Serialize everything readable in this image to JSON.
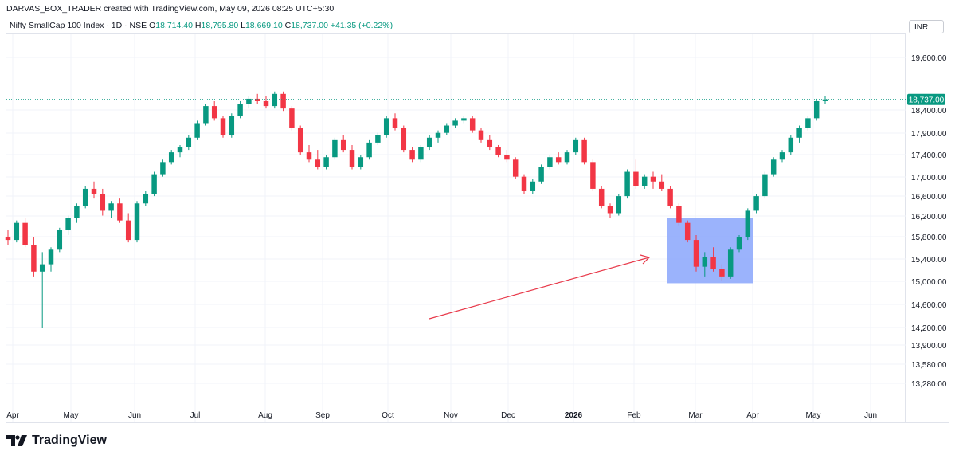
{
  "header": {
    "attribution": "DARVAS_BOX_TRADER created with TradingView.com, May 09, 2026 08:25 UTC+5:30"
  },
  "legend": {
    "symbol": "Nifty SmallCap 100 Index · 1D · NSE",
    "open_label": "O",
    "open": "18,714.40",
    "high_label": "H",
    "high": "18,795.80",
    "low_label": "L",
    "low": "18,669.10",
    "close_label": "C",
    "close": "18,737.00",
    "change": "+41.35 (+0.22%)"
  },
  "currency": "INR",
  "brand": "TradingView",
  "colors": {
    "up": "#089981",
    "down": "#f23645",
    "box": "#8aa6fb",
    "arrow": "#e8394a",
    "price_label_bg": "#089981"
  },
  "chart_data": {
    "type": "candlestick",
    "current_price": "18,737.00",
    "y_ticks": [
      "19,600.00",
      "18,400.00",
      "17,900.00",
      "17,400.00",
      "17,000.00",
      "16,600.00",
      "16,200.00",
      "15,800.00",
      "15,400.00",
      "15,000.00",
      "14,600.00",
      "14,200.00",
      "13,900.00",
      "13,580.00",
      "13,280.00"
    ],
    "x_ticks": [
      "Apr",
      "May",
      "Jun",
      "Jul",
      "Aug",
      "Sep",
      "Oct",
      "Nov",
      "Dec",
      "2026",
      "Feb",
      "Mar",
      "Apr",
      "May",
      "Jun"
    ],
    "annotations": {
      "box": {
        "price_top": 16300,
        "price_bottom": 14960,
        "from": "Mar",
        "to": "Apr"
      },
      "arrow": "pointing up-right toward the box"
    },
    "ohlc_approx": [
      [
        15900,
        16050,
        15750,
        15850
      ],
      [
        15850,
        16250,
        15800,
        16200
      ],
      [
        16200,
        16300,
        15700,
        15750
      ],
      [
        15750,
        15900,
        15100,
        15200
      ],
      [
        15200,
        15600,
        14050,
        15350
      ],
      [
        15350,
        15700,
        15200,
        15650
      ],
      [
        15650,
        16100,
        15600,
        16050
      ],
      [
        16050,
        16350,
        15950,
        16300
      ],
      [
        16300,
        16600,
        16200,
        16550
      ],
      [
        16550,
        16950,
        16500,
        16900
      ],
      [
        16900,
        17050,
        16700,
        16800
      ],
      [
        16800,
        16900,
        16350,
        16450
      ],
      [
        16450,
        16650,
        16300,
        16600
      ],
      [
        16600,
        16700,
        16200,
        16250
      ],
      [
        16250,
        16400,
        15800,
        15850
      ],
      [
        15850,
        16650,
        15800,
        16600
      ],
      [
        16600,
        16850,
        16550,
        16800
      ],
      [
        16800,
        17250,
        16750,
        17200
      ],
      [
        17200,
        17500,
        17150,
        17450
      ],
      [
        17450,
        17700,
        17400,
        17650
      ],
      [
        17650,
        17800,
        17550,
        17750
      ],
      [
        17750,
        18000,
        17700,
        17950
      ],
      [
        17950,
        18300,
        17900,
        18250
      ],
      [
        18250,
        18650,
        18200,
        18600
      ],
      [
        18600,
        18700,
        18300,
        18350
      ],
      [
        18350,
        18400,
        17950,
        18000
      ],
      [
        18000,
        18450,
        17950,
        18400
      ],
      [
        18400,
        18700,
        18350,
        18650
      ],
      [
        18650,
        18800,
        18550,
        18750
      ],
      [
        18750,
        18850,
        18650,
        18700
      ],
      [
        18700,
        18800,
        18550,
        18600
      ],
      [
        18600,
        18900,
        18550,
        18850
      ],
      [
        18850,
        18900,
        18500,
        18550
      ],
      [
        18550,
        18600,
        18100,
        18150
      ],
      [
        18150,
        18200,
        17600,
        17650
      ],
      [
        17650,
        17800,
        17450,
        17500
      ],
      [
        17500,
        17700,
        17300,
        17350
      ],
      [
        17350,
        17600,
        17300,
        17550
      ],
      [
        17550,
        17950,
        17500,
        17900
      ],
      [
        17900,
        18000,
        17650,
        17700
      ],
      [
        17700,
        17800,
        17300,
        17350
      ],
      [
        17350,
        17600,
        17300,
        17550
      ],
      [
        17550,
        17900,
        17500,
        17850
      ],
      [
        17850,
        18050,
        17800,
        18000
      ],
      [
        18000,
        18400,
        17950,
        18350
      ],
      [
        18350,
        18450,
        18100,
        18150
      ],
      [
        18150,
        18200,
        17650,
        17700
      ],
      [
        17700,
        17750,
        17450,
        17500
      ],
      [
        17500,
        17800,
        17450,
        17750
      ],
      [
        17750,
        18000,
        17700,
        17950
      ],
      [
        17950,
        18100,
        17850,
        18050
      ],
      [
        18050,
        18250,
        18000,
        18200
      ],
      [
        18200,
        18350,
        18150,
        18300
      ],
      [
        18300,
        18400,
        18250,
        18350
      ],
      [
        18350,
        18400,
        18050,
        18100
      ],
      [
        18100,
        18150,
        17850,
        17900
      ],
      [
        17900,
        18000,
        17700,
        17750
      ],
      [
        17750,
        17800,
        17550,
        17600
      ],
      [
        17600,
        17700,
        17450,
        17500
      ],
      [
        17500,
        17550,
        17100,
        17150
      ],
      [
        17150,
        17200,
        16800,
        16850
      ],
      [
        16850,
        17100,
        16800,
        17050
      ],
      [
        17050,
        17400,
        17000,
        17350
      ],
      [
        17350,
        17600,
        17300,
        17550
      ],
      [
        17550,
        17650,
        17400,
        17450
      ],
      [
        17450,
        17700,
        17400,
        17650
      ],
      [
        17650,
        17950,
        17600,
        17900
      ],
      [
        17900,
        17950,
        17400,
        17450
      ],
      [
        17450,
        17500,
        16850,
        16900
      ],
      [
        16900,
        16950,
        16500,
        16550
      ],
      [
        16550,
        16600,
        16300,
        16400
      ],
      [
        16400,
        16800,
        16350,
        16750
      ],
      [
        16750,
        17300,
        16700,
        17250
      ],
      [
        17250,
        17500,
        16900,
        16950
      ],
      [
        16950,
        17200,
        16900,
        17150
      ],
      [
        17150,
        17250,
        16900,
        17050
      ],
      [
        17050,
        17200,
        16850,
        16900
      ],
      [
        16900,
        16950,
        16500,
        16550
      ],
      [
        16550,
        16600,
        16150,
        16200
      ],
      [
        16200,
        16250,
        15800,
        15850
      ],
      [
        15850,
        15950,
        15200,
        15300
      ],
      [
        15300,
        15600,
        15100,
        15500
      ],
      [
        15500,
        15700,
        15200,
        15250
      ],
      [
        15250,
        15350,
        15000,
        15100
      ],
      [
        15100,
        15700,
        15050,
        15650
      ],
      [
        15650,
        15950,
        15600,
        15900
      ],
      [
        15900,
        16500,
        15850,
        16450
      ],
      [
        16450,
        16800,
        16400,
        16750
      ],
      [
        16750,
        17250,
        16700,
        17200
      ],
      [
        17200,
        17550,
        17150,
        17500
      ],
      [
        17500,
        17700,
        17450,
        17650
      ],
      [
        17650,
        18000,
        17600,
        17950
      ],
      [
        17950,
        18200,
        17850,
        18150
      ],
      [
        18150,
        18400,
        18100,
        18350
      ],
      [
        18350,
        18750,
        18300,
        18700
      ],
      [
        18700,
        18800,
        18650,
        18737
      ]
    ]
  }
}
